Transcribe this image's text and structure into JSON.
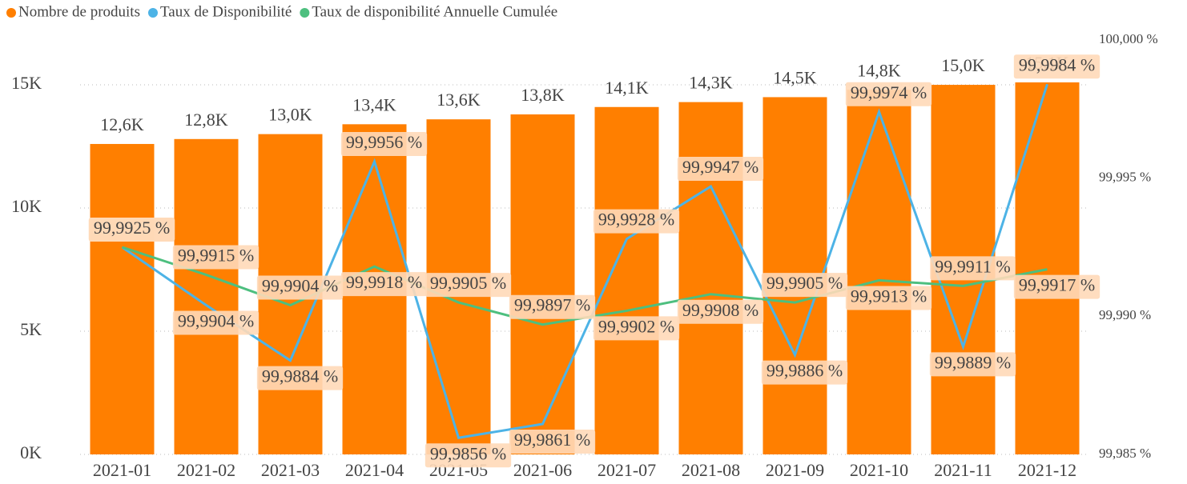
{
  "chart_data": {
    "type": "bar",
    "categories": [
      "2021-01",
      "2021-02",
      "2021-03",
      "2021-04",
      "2021-05",
      "2021-06",
      "2021-07",
      "2021-08",
      "2021-09",
      "2021-10",
      "2021-11",
      "2021-12"
    ],
    "series": [
      {
        "name": "Nombre de produits",
        "type": "bar",
        "color": "#ff7f00",
        "values": [
          12600,
          12800,
          13000,
          13400,
          13600,
          13800,
          14100,
          14300,
          14500,
          14800,
          15000,
          15100
        ],
        "value_labels": [
          "12,6K",
          "12,8K",
          "13,0K",
          "13,4K",
          "13,6K",
          "13,8K",
          "14,1K",
          "14,3K",
          "14,5K",
          "14,8K",
          "15,0K",
          "15,1K"
        ]
      },
      {
        "name": "Taux de Disponibilité",
        "type": "line",
        "axis": "y2",
        "color": "#4db3e6",
        "values": [
          99.9925,
          99.9904,
          99.9884,
          99.9956,
          99.9856,
          99.9861,
          99.9928,
          99.9947,
          99.9886,
          99.9974,
          99.9889,
          99.9984
        ],
        "value_labels": [
          "99,9925 %",
          "99,9904 %",
          "99,9884 %",
          "99,9956 %",
          "99,9856 %",
          "99,9861 %",
          "99,9928 %",
          "99,9947 %",
          "99,9886 %",
          "99,9974 %",
          "99,9889 %",
          "99,9984 %"
        ]
      },
      {
        "name": "Taux de disponibilité Annuelle Cumulée",
        "type": "line",
        "axis": "y2",
        "color": "#4dbf7f",
        "values": [
          99.9925,
          99.9915,
          99.9904,
          99.9918,
          99.9905,
          99.9897,
          99.9902,
          99.9908,
          99.9905,
          99.9913,
          99.9911,
          99.9917
        ],
        "value_labels": [
          "99,9925 %",
          "99,9915 %",
          "99,9904 %",
          "99,9918 %",
          "99,9905 %",
          "99,9897 %",
          "99,9902 %",
          "99,9908 %",
          "99,9905 %",
          "99,9913 %",
          "99,9911 %",
          "99,9917 %"
        ]
      }
    ],
    "ylim": [
      0,
      16820
    ],
    "yticks": [
      {
        "value": 0,
        "label": "0K"
      },
      {
        "value": 5000,
        "label": "5K"
      },
      {
        "value": 10000,
        "label": "10K"
      },
      {
        "value": 15000,
        "label": "15K"
      }
    ],
    "y2lim": [
      99.985,
      100.0
    ],
    "y2ticks": [
      {
        "value": 99.985,
        "label": "99,985 %"
      },
      {
        "value": 99.99,
        "label": "99,990 %"
      },
      {
        "value": 99.995,
        "label": "99,995 %"
      },
      {
        "value": 100.0,
        "label": "100,000 %"
      }
    ],
    "grid": true,
    "legend": "top-left"
  }
}
